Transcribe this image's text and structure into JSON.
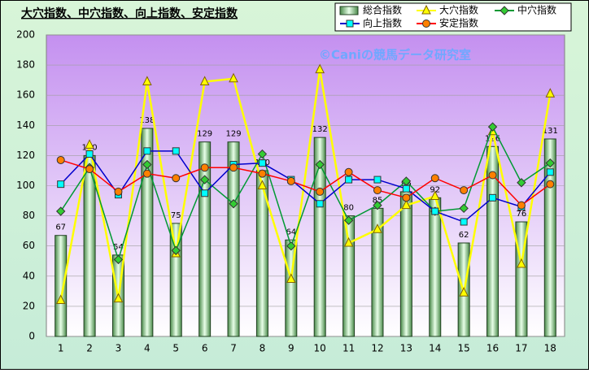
{
  "chart_data": {
    "type": "combo",
    "title": "大穴指数、中穴指数、向上指数、安定指数",
    "watermark": "©Caniの競馬データ研究室",
    "categories": [
      "1",
      "2",
      "3",
      "4",
      "5",
      "6",
      "7",
      "8",
      "9",
      "10",
      "11",
      "12",
      "13",
      "14",
      "15",
      "16",
      "17",
      "18"
    ],
    "series": [
      {
        "name": "総合指数",
        "type": "bar",
        "color": "#8fd08f",
        "values": [
          67,
          120,
          54,
          138,
          75,
          129,
          129,
          110,
          64,
          132,
          80,
          85,
          96,
          92,
          62,
          126,
          76,
          131
        ]
      },
      {
        "name": "大穴指数",
        "type": "line",
        "marker": "triangle",
        "color": "#ffff00",
        "values": [
          24,
          127,
          25,
          169,
          55,
          169,
          171,
          100,
          38,
          177,
          62,
          71,
          87,
          93,
          29,
          136,
          48,
          161
        ]
      },
      {
        "name": "中穴指数",
        "type": "line",
        "marker": "diamond",
        "color": "#009933",
        "values": [
          83,
          112,
          51,
          114,
          57,
          104,
          88,
          121,
          60,
          114,
          77,
          87,
          103,
          83,
          85,
          139,
          102,
          115
        ]
      },
      {
        "name": "向上指数",
        "type": "line",
        "marker": "square",
        "color": "#0000cc",
        "values": [
          101,
          121,
          94,
          123,
          123,
          95,
          114,
          115,
          104,
          88,
          104,
          104,
          98,
          83,
          76,
          92,
          86,
          109
        ]
      },
      {
        "name": "安定指数",
        "type": "line",
        "marker": "circle",
        "color": "#ff0000",
        "values": [
          117,
          111,
          96,
          108,
          105,
          112,
          112,
          108,
          103,
          96,
          109,
          97,
          92,
          105,
          97,
          107,
          87,
          101
        ]
      }
    ],
    "ylim": [
      0,
      200
    ],
    "yticks": [
      0,
      20,
      40,
      60,
      80,
      100,
      120,
      140,
      160,
      180,
      200
    ],
    "grid": true
  }
}
